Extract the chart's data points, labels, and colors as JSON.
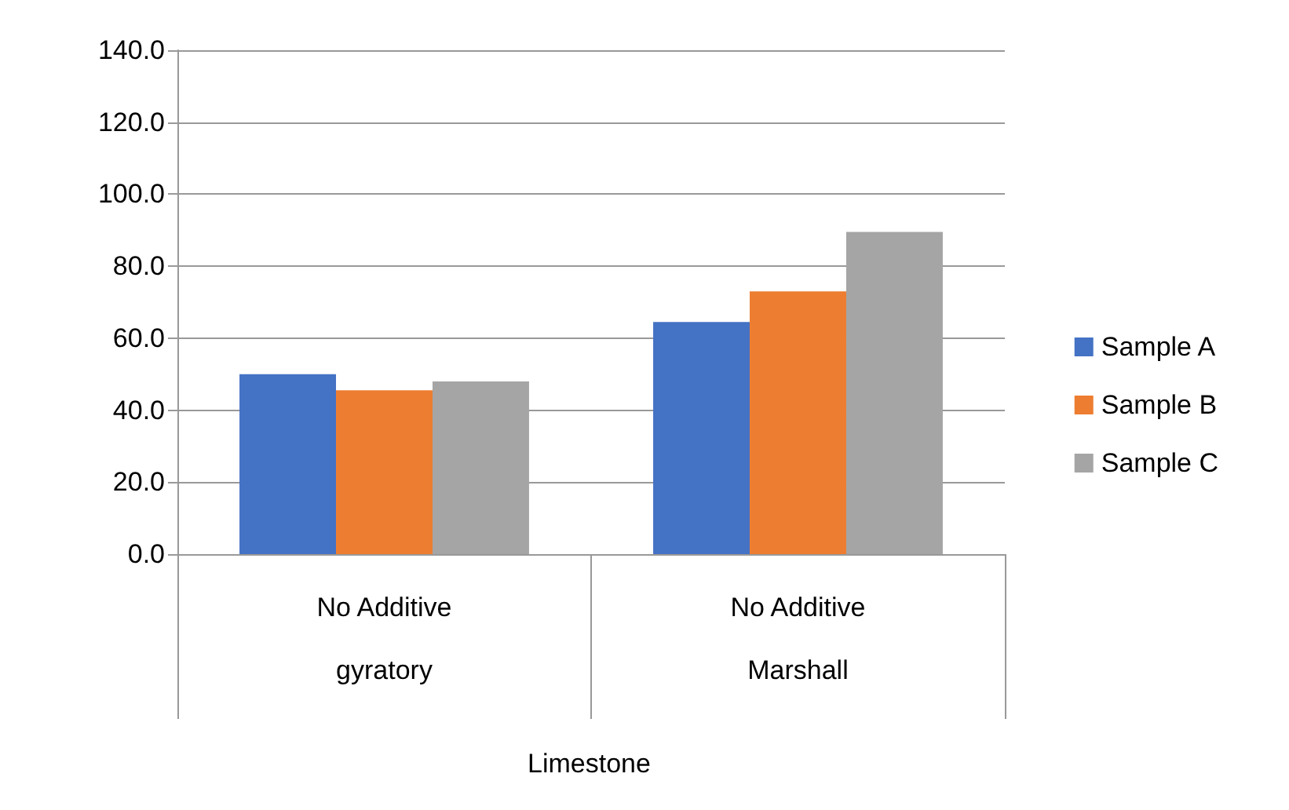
{
  "chart_data": {
    "type": "bar",
    "annotations": [
      "Limestone"
    ],
    "categories": [
      "No Additive\ngyratory",
      "No Additive\nMarshall"
    ],
    "series": [
      {
        "name": "Sample A",
        "color": "#4472c4",
        "values": [
          50,
          64.5
        ]
      },
      {
        "name": "Sample B",
        "color": "#ed7d31",
        "values": [
          45.5,
          73
        ]
      },
      {
        "name": "Sample C",
        "color": "#a5a5a5",
        "values": [
          48,
          89.5
        ]
      }
    ],
    "ylim": [
      0,
      140
    ],
    "yticks": [
      {
        "value": 0,
        "label": "0.0"
      },
      {
        "value": 20,
        "label": "20.0"
      },
      {
        "value": 40,
        "label": "40.0"
      },
      {
        "value": 60,
        "label": "60.0"
      },
      {
        "value": 80,
        "label": "80.0"
      },
      {
        "value": 100,
        "label": "100.0"
      },
      {
        "value": 120,
        "label": "120.0"
      },
      {
        "value": 140,
        "label": "140.0"
      }
    ],
    "grid": "y",
    "legend": "right"
  }
}
